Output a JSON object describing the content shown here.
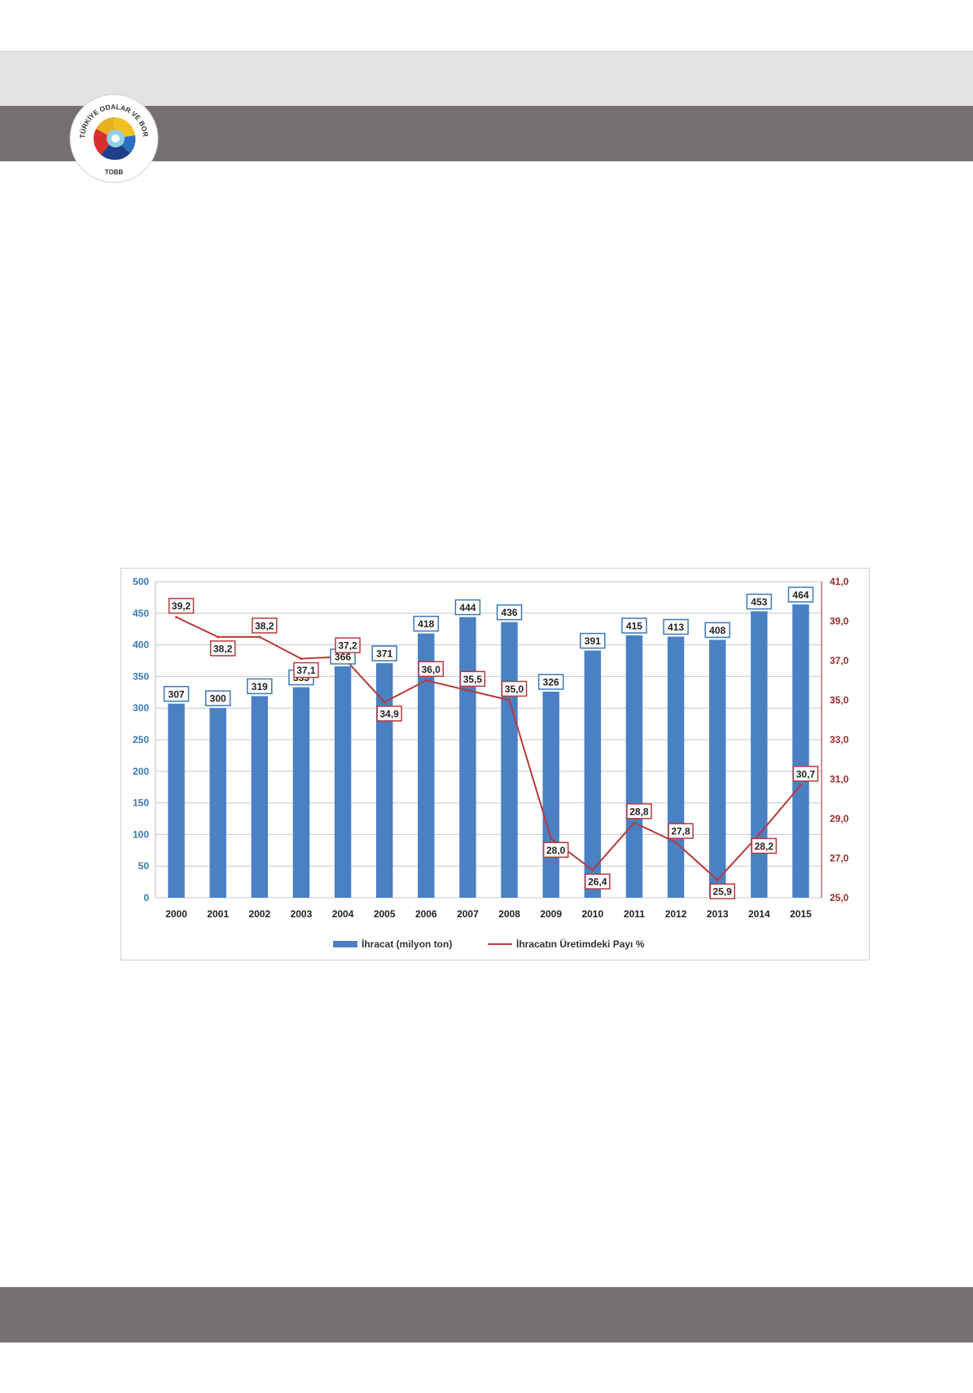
{
  "header": {
    "logo_text": "TÜRKİYE ODALAR VE BORSALAR BİRLİĞİ",
    "logo_abbr": "TOBB"
  },
  "colors": {
    "bar": "#4a80c4",
    "line": "#b83a3a",
    "left_axis": "#3a78b8",
    "right_axis": "#9b2a2a"
  },
  "chart_data": {
    "type": "bar",
    "categories": [
      "2000",
      "2001",
      "2002",
      "2003",
      "2004",
      "2005",
      "2006",
      "2007",
      "2008",
      "2009",
      "2010",
      "2011",
      "2012",
      "2013",
      "2014",
      "2015"
    ],
    "series": [
      {
        "name": "İhracat (milyon ton)",
        "type": "bar",
        "axis": "left",
        "values": [
          307,
          300,
          319,
          333,
          366,
          371,
          418,
          444,
          436,
          326,
          391,
          415,
          413,
          408,
          453,
          464
        ],
        "labels": [
          "307",
          "300",
          "319",
          "333",
          "366",
          "371",
          "418",
          "444",
          "436",
          "326",
          "391",
          "415",
          "413",
          "408",
          "453",
          "464"
        ]
      },
      {
        "name": "İhracatın Üretimdeki Payı %",
        "type": "line",
        "axis": "right",
        "values": [
          39.2,
          38.2,
          38.2,
          37.1,
          37.2,
          34.9,
          36.0,
          35.5,
          35.0,
          28.0,
          26.4,
          28.8,
          27.8,
          25.9,
          28.2,
          30.7
        ],
        "labels": [
          "39,2",
          "38,2",
          "38,2",
          "37,1",
          "37,2",
          "34,9",
          "36,0",
          "35,5",
          "35,0",
          "28,0",
          "26,4",
          "28,8",
          "27,8",
          "25,9",
          "28,2",
          "30,7"
        ]
      }
    ],
    "ylim": [
      0,
      500
    ],
    "yticks": [
      "0",
      "50",
      "100",
      "150",
      "200",
      "250",
      "300",
      "350",
      "400",
      "450",
      "500"
    ],
    "y2lim": [
      25,
      41
    ],
    "y2ticks": [
      "25,0",
      "27,0",
      "29,0",
      "31,0",
      "33,0",
      "35,0",
      "37,0",
      "39,0",
      "41,0"
    ],
    "grid": true,
    "legend_position": "bottom"
  }
}
